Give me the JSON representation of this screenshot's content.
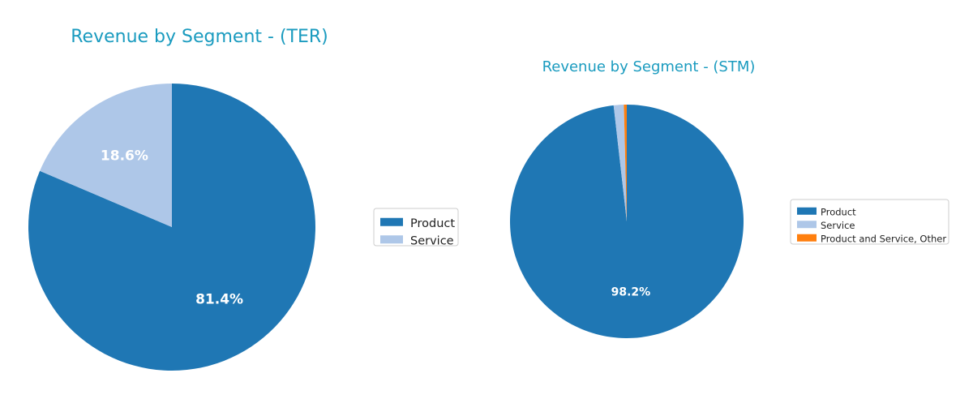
{
  "chart_data": [
    {
      "type": "pie",
      "title": "Revenue by Segment - (TER)",
      "categories": [
        "Product",
        "Service"
      ],
      "values": [
        81.4,
        18.6
      ],
      "value_labels": [
        "81.4%",
        "18.6%"
      ],
      "colors": [
        "#1f77b4",
        "#aec7e8"
      ],
      "start_angle": 90,
      "direction": "clockwise",
      "legend_position": "right"
    },
    {
      "type": "pie",
      "title": "Revenue by Segment - (STM)",
      "categories": [
        "Product",
        "Service",
        "Product and Service, Other"
      ],
      "values": [
        98.2,
        1.4,
        0.4
      ],
      "value_labels": [
        "98.2%",
        "",
        ""
      ],
      "colors": [
        "#1f77b4",
        "#aec7e8",
        "#ff7f0e"
      ],
      "start_angle": 90,
      "direction": "clockwise",
      "legend_position": "right"
    }
  ],
  "title_color": "#1a9bbf"
}
